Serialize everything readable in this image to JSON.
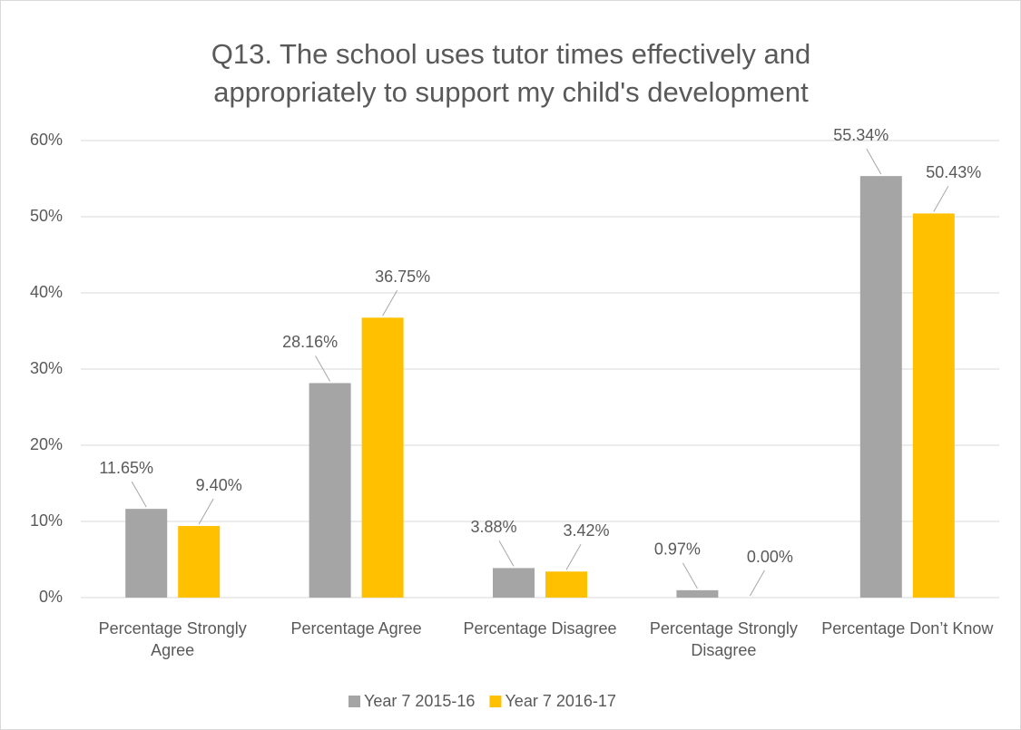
{
  "chart_data": {
    "type": "bar",
    "title": "Q13. The school uses tutor times effectively and appropriately to support my child's development",
    "categories": [
      "Percentage Strongly Agree",
      "Percentage Agree",
      "Percentage Disagree",
      "Percentage Strongly Disagree",
      "Percentage Don’t Know"
    ],
    "series": [
      {
        "name": "Year 7 2015-16",
        "color": "#a5a5a5",
        "values": [
          11.65,
          28.16,
          3.88,
          0.97,
          55.34
        ],
        "value_labels": [
          "11.65%",
          "28.16%",
          "3.88%",
          "0.97%",
          "55.34%"
        ]
      },
      {
        "name": "Year 7 2016-17",
        "color": "#ffc000",
        "values": [
          9.4,
          36.75,
          3.42,
          0.0,
          50.43
        ],
        "value_labels": [
          "9.40%",
          "36.75%",
          "3.42%",
          "0.00%",
          "50.43%"
        ]
      }
    ],
    "ylim": [
      0,
      60
    ],
    "yticks": [
      {
        "value": 0,
        "label": "0%"
      },
      {
        "value": 10,
        "label": "10%"
      },
      {
        "value": 20,
        "label": "20%"
      },
      {
        "value": 30,
        "label": "30%"
      },
      {
        "value": 40,
        "label": "40%"
      },
      {
        "value": 50,
        "label": "50%"
      },
      {
        "value": 60,
        "label": "60%"
      }
    ],
    "grid": true,
    "legend": "bottom"
  }
}
